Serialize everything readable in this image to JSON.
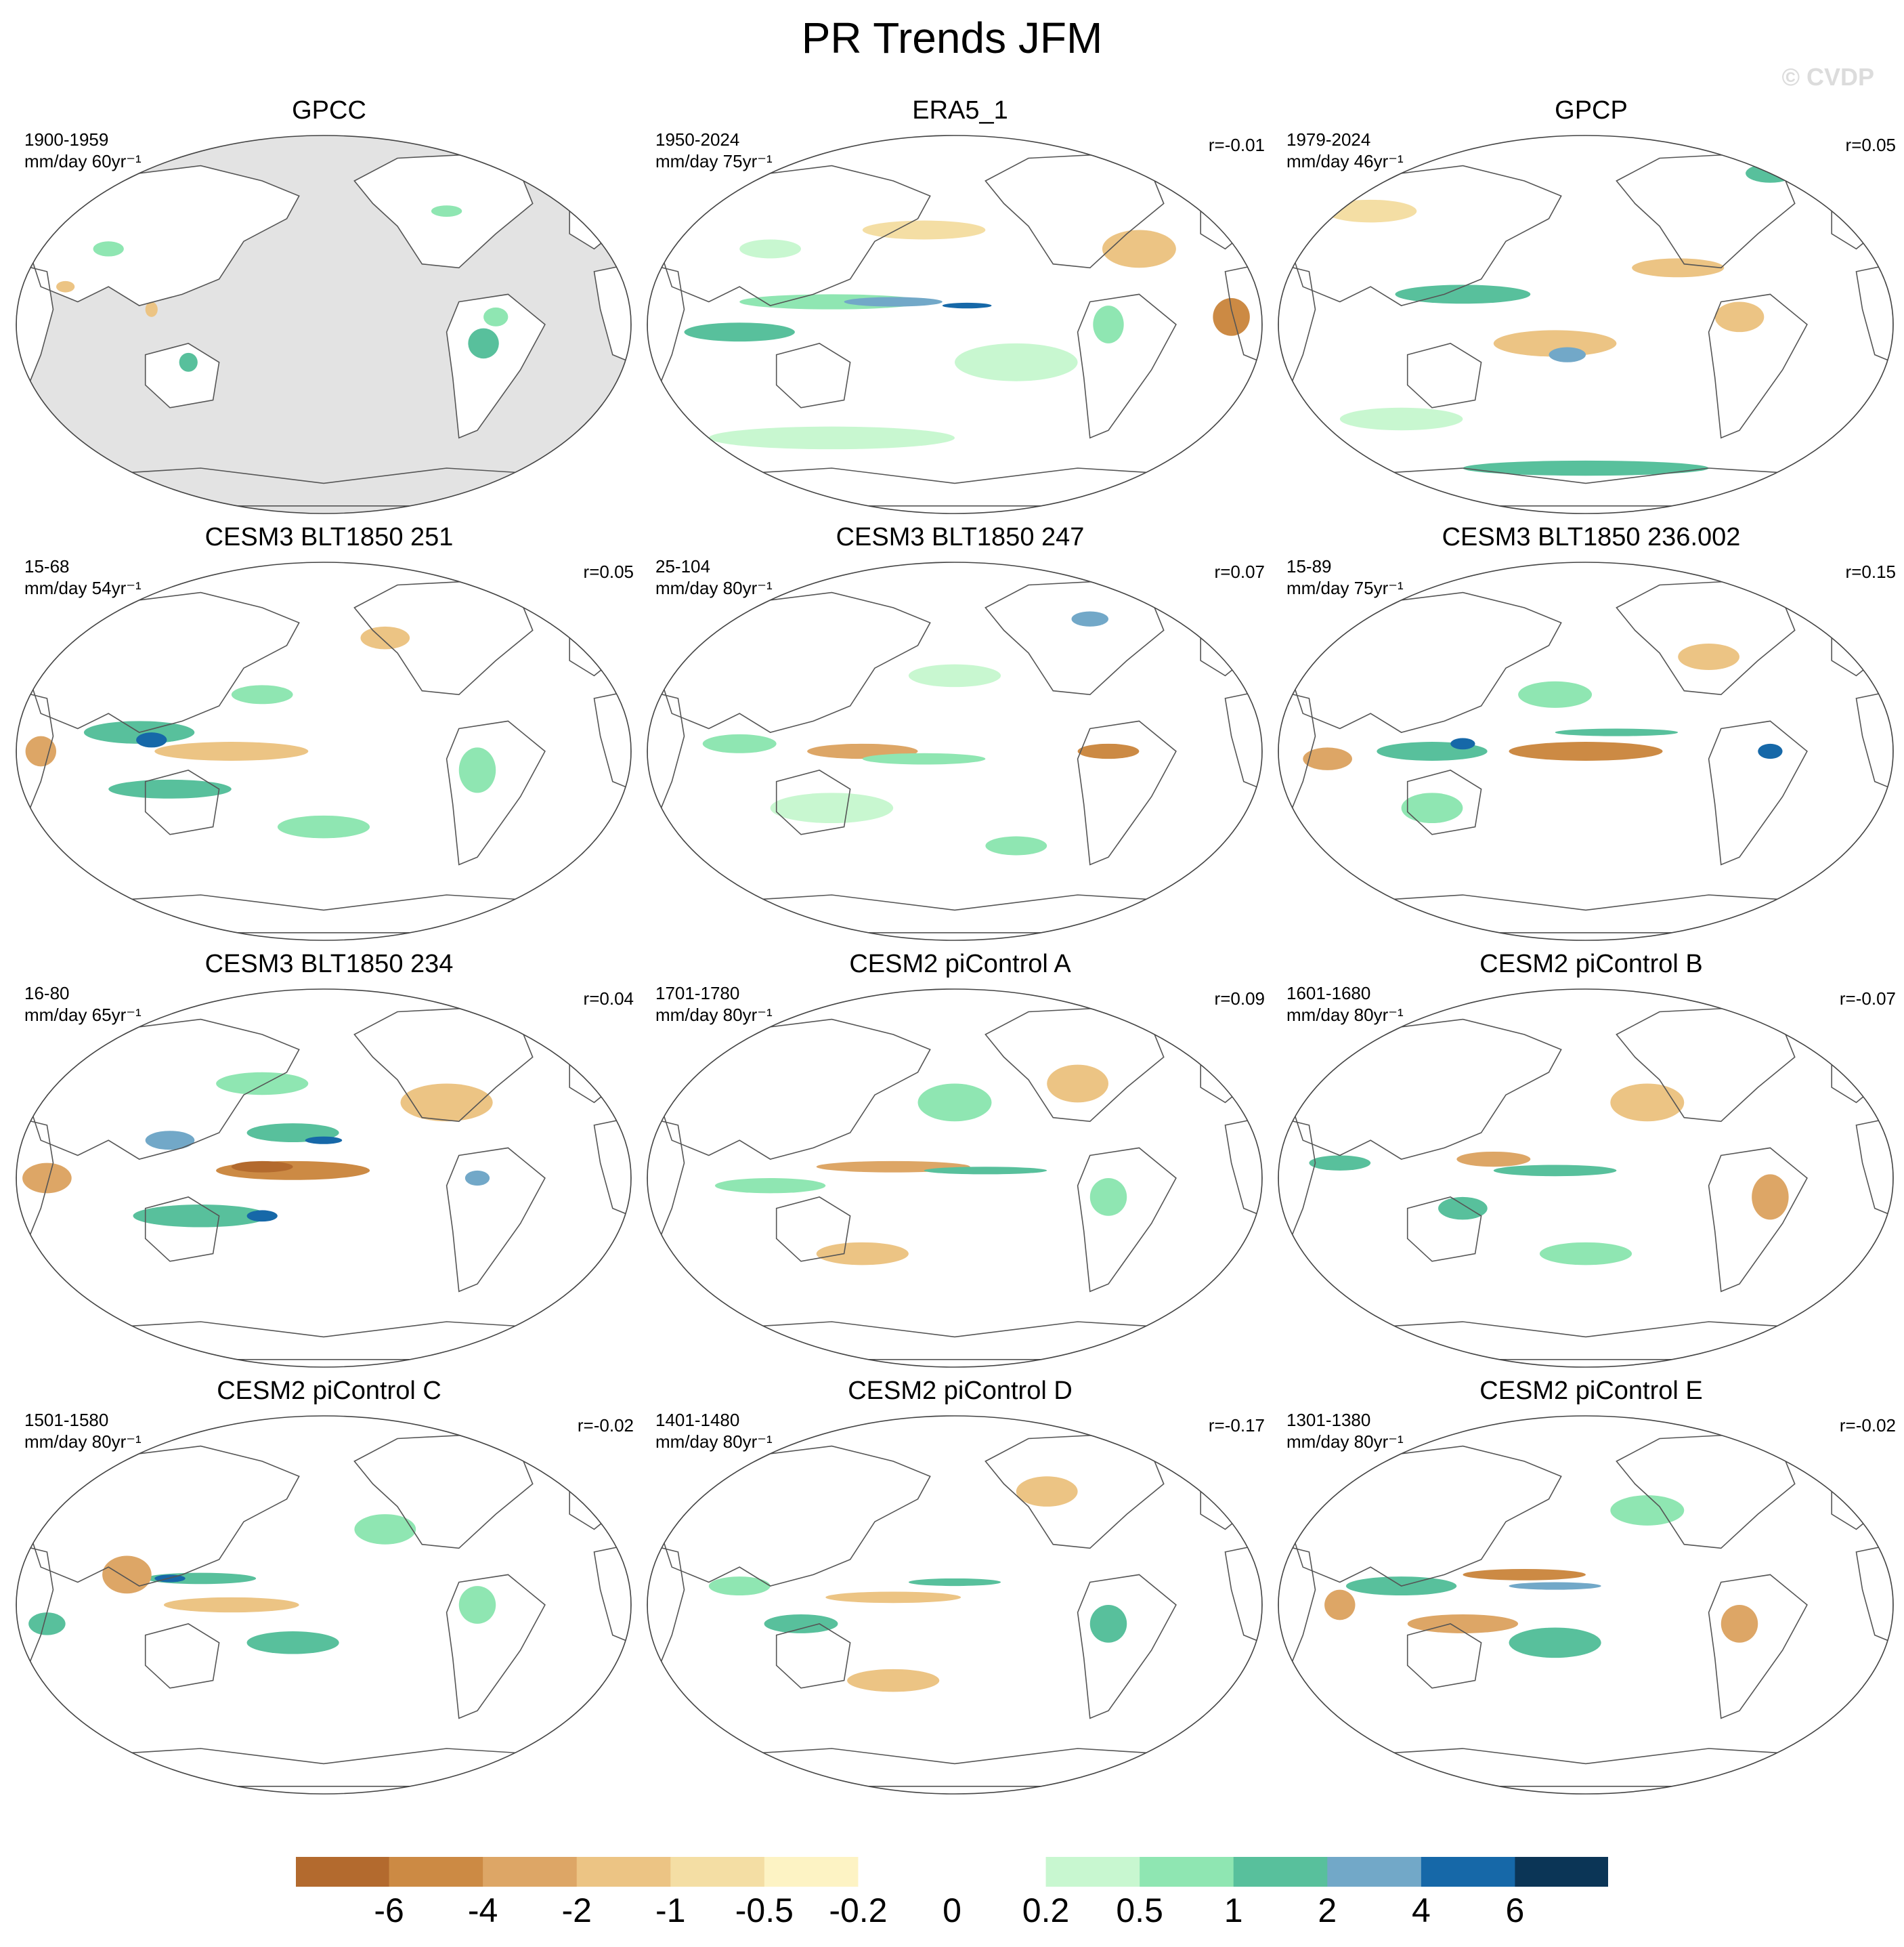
{
  "title": "PR Trends JFM",
  "watermark": "© CVDP",
  "panels": [
    {
      "title": "GPCC",
      "period": "1900-1959",
      "units": "mm/day 60yr⁻¹",
      "r": "",
      "style": "obs"
    },
    {
      "title": "ERA5_1",
      "period": "1950-2024",
      "units": "mm/day 75yr⁻¹",
      "r": "r=-0.01",
      "style": "era5"
    },
    {
      "title": "GPCP",
      "period": "1979-2024",
      "units": "mm/day 46yr⁻¹",
      "r": "r=0.05",
      "style": "gpcp"
    },
    {
      "title": "CESM3 BLT1850 251",
      "period": "15-68",
      "units": "mm/day 54yr⁻¹",
      "r": "r=0.05",
      "style": "m1"
    },
    {
      "title": "CESM3 BLT1850 247",
      "period": "25-104",
      "units": "mm/day 80yr⁻¹",
      "r": "r=0.07",
      "style": "m2"
    },
    {
      "title": "CESM3 BLT1850 236.002",
      "period": "15-89",
      "units": "mm/day 75yr⁻¹",
      "r": "r=0.15",
      "style": "m3"
    },
    {
      "title": "CESM3 BLT1850 234",
      "period": "16-80",
      "units": "mm/day 65yr⁻¹",
      "r": "r=0.04",
      "style": "m4"
    },
    {
      "title": "CESM2 piControl A",
      "period": "1701-1780",
      "units": "mm/day 80yr⁻¹",
      "r": "r=0.09",
      "style": "m5"
    },
    {
      "title": "CESM2 piControl B",
      "period": "1601-1680",
      "units": "mm/day 80yr⁻¹",
      "r": "r=-0.07",
      "style": "m6"
    },
    {
      "title": "CESM2 piControl C",
      "period": "1501-1580",
      "units": "mm/day 80yr⁻¹",
      "r": "r=-0.02",
      "style": "m7"
    },
    {
      "title": "CESM2 piControl D",
      "period": "1401-1480",
      "units": "mm/day 80yr⁻¹",
      "r": "r=-0.17",
      "style": "m8"
    },
    {
      "title": "CESM2 piControl E",
      "period": "1301-1380",
      "units": "mm/day 80yr⁻¹",
      "r": "r=-0.02",
      "style": "m9"
    }
  ],
  "colorbar": {
    "labels": [
      "-6",
      "-4",
      "-2",
      "-1",
      "-0.5",
      "-0.2",
      "0",
      "0.2",
      "0.5",
      "1",
      "2",
      "4",
      "6"
    ],
    "colors": [
      "#b36a2e",
      "#cc8a44",
      "#dda666",
      "#ecc484",
      "#f4dea4",
      "#fdf3c4",
      "#ffffff",
      "#ffffff",
      "#c8f7d0",
      "#8fe6b2",
      "#58c09c",
      "#72a8c8",
      "#1668a8",
      "#0b3556"
    ]
  }
}
